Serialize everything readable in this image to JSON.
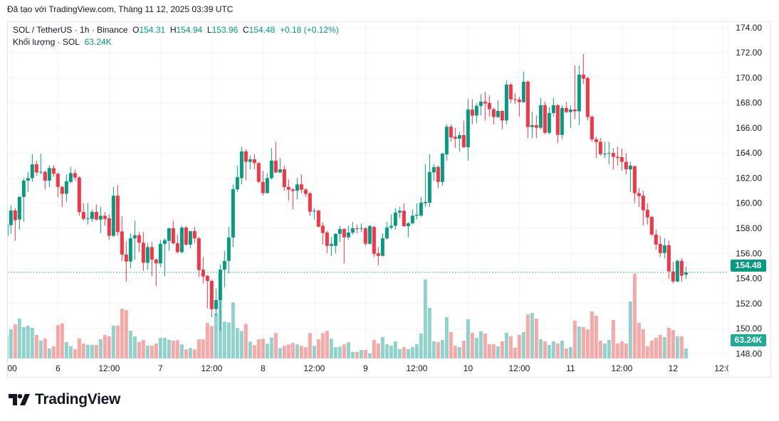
{
  "caption": "Đã tạo với TradingView.com, Tháng 11 12, 2025 03:39 UTC",
  "legend": {
    "symbol": "SOL / TetherUS · 1h · Binance",
    "open_label": "O",
    "open": "154.31",
    "high_label": "H",
    "high": "154.94",
    "low_label": "L",
    "low": "153.96",
    "close_label": "C",
    "close": "154.48",
    "change": "+0.18 (+0.12%)",
    "volume_label": "Khối lượng · SOL",
    "volume": "63.24K"
  },
  "badges": {
    "last_price": "154.48",
    "last_volume": "63.24K"
  },
  "footer": {
    "brand": "TradingView",
    "logo_icon": "tradingview-logo"
  },
  "colors": {
    "up": "#089981",
    "down": "#f23645",
    "up_volume": "#26a69a",
    "down_volume": "#ef5350",
    "grid": "#f0f3fa"
  },
  "chart_data": {
    "type": "candlestick",
    "symbol": "SOL / TetherUS",
    "interval": "1h",
    "ylim": [
      147.62,
      174.45
    ],
    "yticks": [
      "174.00",
      "172.00",
      "170.00",
      "168.00",
      "166.00",
      "164.00",
      "162.00",
      "160.00",
      "158.00",
      "156.00",
      "154.00",
      "152.00",
      "150.00",
      "148.00"
    ],
    "xticks": [
      "00",
      "6",
      "12:00",
      "7",
      "12:00",
      "8",
      "12:00",
      "9",
      "12:00",
      "10",
      "12:00",
      "11",
      "12:00",
      "12",
      "12:0"
    ],
    "last_price": 154.48,
    "ohlc": [
      [
        157.4,
        158.5,
        157.0,
        158.3
      ],
      [
        158.25,
        159.86,
        157.57,
        159.42
      ],
      [
        159.42,
        159.6,
        157.0,
        158.64
      ],
      [
        158.7,
        160.55,
        157.9,
        160.5
      ],
      [
        160.5,
        162.0,
        158.5,
        161.8
      ],
      [
        161.8,
        162.5,
        160.9,
        162.0
      ],
      [
        162.0,
        163.9,
        161.7,
        163.1
      ],
      [
        163.1,
        163.4,
        162.2,
        162.45
      ],
      [
        162.45,
        163.95,
        162.3,
        162.5
      ],
      [
        162.5,
        162.6,
        161.1,
        161.8
      ],
      [
        161.8,
        163.0,
        161.3,
        162.8
      ],
      [
        162.8,
        163.05,
        162.1,
        162.35
      ],
      [
        162.35,
        162.45,
        160.5,
        161.3
      ],
      [
        161.3,
        161.4,
        159.7,
        160.75
      ],
      [
        160.75,
        162.3,
        160.1,
        161.75
      ],
      [
        161.7,
        162.9,
        161.6,
        162.4
      ],
      [
        162.4,
        162.7,
        161.8,
        162.05
      ],
      [
        162.05,
        162.15,
        159.0,
        159.3
      ],
      [
        159.3,
        160.0,
        158.6,
        158.75
      ],
      [
        158.75,
        160.0,
        158.3,
        158.8
      ],
      [
        158.75,
        159.5,
        158.5,
        159.3
      ],
      [
        159.3,
        159.9,
        158.6,
        158.7
      ],
      [
        158.7,
        159.7,
        157.6,
        159.0
      ],
      [
        159.0,
        159.3,
        158.2,
        158.75
      ],
      [
        158.8,
        159.1,
        157.1,
        157.4
      ],
      [
        157.4,
        161.3,
        157.3,
        160.6
      ],
      [
        160.6,
        161.45,
        157.4,
        157.7
      ],
      [
        157.75,
        158.95,
        155.4,
        155.9
      ],
      [
        155.9,
        156.95,
        153.75,
        155.35
      ],
      [
        155.35,
        157.6,
        154.8,
        157.2
      ],
      [
        157.2,
        158.6,
        155.5,
        157.45
      ],
      [
        157.45,
        157.7,
        156.1,
        156.85
      ],
      [
        156.85,
        157.7,
        154.6,
        155.25
      ],
      [
        155.25,
        156.85,
        154.7,
        156.5
      ],
      [
        156.5,
        156.9,
        154.2,
        155.5
      ],
      [
        155.5,
        155.6,
        153.4,
        155.2
      ],
      [
        155.2,
        157.05,
        154.9,
        156.75
      ],
      [
        156.75,
        157.2,
        154.2,
        157.05
      ],
      [
        157.0,
        158.05,
        156.2,
        158.0
      ],
      [
        158.0,
        158.6,
        156.7,
        156.8
      ],
      [
        156.8,
        157.5,
        156.0,
        156.1
      ],
      [
        156.1,
        158.2,
        156.0,
        158.06
      ],
      [
        158.06,
        158.2,
        156.6,
        156.7
      ],
      [
        156.7,
        157.8,
        156.4,
        157.77
      ],
      [
        157.77,
        158.1,
        156.8,
        157.2
      ],
      [
        157.2,
        157.3,
        154.1,
        154.67
      ],
      [
        154.7,
        155.7,
        153.6,
        154.16
      ],
      [
        154.2,
        154.3,
        151.6,
        153.8
      ],
      [
        153.8,
        153.9,
        150.9,
        151.55
      ],
      [
        151.55,
        153.2,
        151.0,
        152.27
      ],
      [
        152.27,
        155.1,
        149.8,
        154.7
      ],
      [
        154.7,
        156.2,
        153.3,
        155.39
      ],
      [
        155.4,
        158.1,
        154.4,
        157.26
      ],
      [
        157.26,
        161.5,
        156.5,
        161.12
      ],
      [
        161.1,
        163.0,
        160.9,
        162.08
      ],
      [
        162.0,
        164.5,
        161.5,
        164.13
      ],
      [
        164.13,
        164.3,
        161.8,
        163.3
      ],
      [
        163.3,
        163.8,
        162.7,
        163.5
      ],
      [
        163.5,
        163.9,
        162.7,
        163.2
      ],
      [
        163.2,
        163.3,
        161.6,
        161.7
      ],
      [
        161.7,
        162.6,
        160.6,
        160.8
      ],
      [
        160.8,
        162.4,
        160.8,
        162.0
      ],
      [
        162.0,
        164.4,
        161.9,
        163.4
      ],
      [
        163.4,
        164.9,
        162.4,
        162.45
      ],
      [
        162.45,
        163.6,
        162.4,
        162.7
      ],
      [
        162.7,
        163.0,
        160.99,
        161.3
      ],
      [
        161.3,
        161.9,
        160.2,
        161.08
      ],
      [
        161.1,
        161.2,
        159.5,
        160.97
      ],
      [
        161.0,
        162.0,
        160.3,
        161.5
      ],
      [
        161.5,
        162.3,
        160.8,
        161.08
      ],
      [
        161.1,
        161.2,
        160.5,
        160.74
      ],
      [
        160.8,
        160.9,
        159.0,
        159.32
      ],
      [
        159.35,
        159.6,
        158.7,
        159.4
      ],
      [
        159.4,
        159.5,
        158.1,
        158.13
      ],
      [
        158.2,
        158.5,
        156.7,
        157.62
      ],
      [
        157.66,
        157.8,
        156.0,
        156.6
      ],
      [
        156.6,
        157.3,
        155.8,
        156.75
      ],
      [
        156.6,
        157.6,
        156.0,
        157.55
      ],
      [
        157.55,
        158.2,
        156.9,
        157.94
      ],
      [
        157.94,
        158.0,
        155.2,
        157.28
      ],
      [
        157.28,
        158.2,
        157.1,
        157.66
      ],
      [
        157.66,
        158.5,
        157.5,
        158.0
      ],
      [
        158.0,
        158.3,
        157.6,
        157.95
      ],
      [
        157.98,
        158.4,
        157.7,
        158.02
      ],
      [
        158.0,
        158.1,
        156.6,
        156.77
      ],
      [
        156.77,
        158.27,
        156.7,
        158.17
      ],
      [
        158.1,
        158.2,
        155.7,
        155.97
      ],
      [
        156.0,
        156.5,
        155.05,
        155.8
      ],
      [
        155.8,
        157.6,
        155.75,
        157.2
      ],
      [
        157.2,
        158.5,
        157.1,
        158.06
      ],
      [
        158.06,
        159.1,
        157.9,
        158.2
      ],
      [
        158.2,
        159.6,
        157.9,
        159.25
      ],
      [
        159.25,
        159.7,
        158.8,
        159.4
      ],
      [
        159.4,
        160.0,
        158.1,
        158.17
      ],
      [
        158.17,
        158.5,
        157.3,
        158.4
      ],
      [
        158.4,
        159.5,
        158.3,
        159.0
      ],
      [
        159.0,
        160.0,
        158.7,
        159.08
      ],
      [
        159.02,
        160.5,
        158.9,
        160.04
      ],
      [
        160.0,
        163.1,
        159.7,
        160.1
      ],
      [
        160.04,
        163.9,
        159.7,
        162.48
      ],
      [
        162.45,
        163.1,
        161.8,
        162.88
      ],
      [
        162.9,
        163.0,
        161.2,
        161.7
      ],
      [
        161.7,
        164.0,
        161.4,
        163.96
      ],
      [
        163.9,
        166.3,
        163.4,
        166.1
      ],
      [
        166.1,
        166.3,
        164.9,
        165.26
      ],
      [
        165.3,
        166.0,
        164.4,
        165.15
      ],
      [
        165.15,
        165.7,
        164.1,
        165.43
      ],
      [
        165.43,
        166.6,
        164.4,
        164.47
      ],
      [
        164.47,
        168.3,
        163.4,
        167.47
      ],
      [
        167.47,
        168.3,
        166.3,
        166.98
      ],
      [
        167.0,
        168.0,
        166.4,
        167.76
      ],
      [
        167.76,
        168.7,
        167.0,
        168.1
      ],
      [
        168.1,
        168.9,
        166.6,
        167.95
      ],
      [
        168.0,
        168.6,
        166.9,
        167.5
      ],
      [
        167.5,
        167.6,
        166.3,
        166.87
      ],
      [
        166.87,
        168.2,
        166.8,
        167.36
      ],
      [
        167.36,
        167.4,
        165.9,
        166.6
      ],
      [
        166.6,
        169.8,
        166.3,
        169.46
      ],
      [
        169.46,
        169.6,
        168.0,
        168.29
      ],
      [
        168.3,
        168.8,
        167.9,
        168.25
      ],
      [
        168.27,
        168.5,
        166.9,
        168.06
      ],
      [
        168.06,
        170.5,
        168.0,
        169.69
      ],
      [
        169.69,
        169.8,
        165.2,
        166.08
      ],
      [
        166.08,
        167.3,
        165.2,
        166.23
      ],
      [
        166.23,
        167.0,
        165.2,
        166.02
      ],
      [
        166.02,
        168.4,
        165.9,
        167.82
      ],
      [
        167.82,
        168.1,
        165.5,
        165.62
      ],
      [
        165.62,
        167.65,
        165.5,
        167.19
      ],
      [
        167.19,
        168.4,
        166.9,
        167.82
      ],
      [
        167.82,
        167.9,
        164.8,
        165.45
      ],
      [
        165.45,
        167.8,
        165.1,
        167.6
      ],
      [
        167.6,
        168.1,
        167.2,
        167.27
      ],
      [
        167.27,
        167.8,
        166.0,
        167.48
      ],
      [
        167.48,
        171.0,
        166.7,
        167.33
      ],
      [
        167.33,
        171.0,
        166.2,
        170.26
      ],
      [
        170.26,
        171.9,
        169.5,
        169.93
      ],
      [
        169.97,
        170.1,
        166.6,
        166.87
      ],
      [
        166.9,
        167.0,
        164.9,
        165.1
      ],
      [
        165.1,
        165.3,
        163.6,
        164.88
      ],
      [
        164.9,
        165.2,
        163.8,
        163.92
      ],
      [
        163.92,
        164.9,
        163.6,
        163.96
      ],
      [
        163.96,
        164.9,
        163.1,
        164.0
      ],
      [
        164.0,
        164.4,
        162.7,
        163.7
      ],
      [
        163.7,
        164.5,
        163.0,
        163.62
      ],
      [
        163.67,
        164.35,
        162.6,
        163.3
      ],
      [
        163.3,
        164.0,
        162.3,
        162.7
      ],
      [
        162.7,
        163.3,
        160.9,
        163.0
      ],
      [
        162.95,
        163.0,
        160.0,
        160.8
      ],
      [
        160.8,
        161.2,
        159.7,
        160.57
      ],
      [
        160.6,
        161.0,
        158.2,
        159.44
      ],
      [
        159.47,
        160.0,
        158.3,
        158.87
      ],
      [
        158.9,
        159.0,
        157.4,
        157.5
      ],
      [
        157.5,
        157.9,
        156.3,
        156.71
      ],
      [
        156.75,
        157.4,
        155.7,
        156.03
      ],
      [
        156.03,
        157.2,
        155.6,
        156.64
      ],
      [
        156.64,
        157.0,
        154.0,
        154.56
      ],
      [
        154.56,
        155.3,
        153.6,
        153.76
      ],
      [
        153.76,
        155.5,
        153.7,
        155.4
      ],
      [
        155.4,
        155.6,
        153.74,
        154.22
      ],
      [
        154.31,
        154.94,
        153.96,
        154.48
      ]
    ],
    "volume_k": [
      146,
      185,
      217,
      253,
      199,
      208,
      194,
      149,
      113,
      127,
      63,
      77,
      212,
      222,
      104,
      77,
      59,
      127,
      95,
      86,
      86,
      86,
      122,
      149,
      140,
      208,
      208,
      316,
      307,
      176,
      140,
      104,
      118,
      81,
      81,
      95,
      131,
      131,
      118,
      113,
      116,
      89,
      57,
      66,
      57,
      121,
      121,
      225,
      206,
      288,
      369,
      234,
      229,
      356,
      193,
      175,
      220,
      107,
      84,
      121,
      125,
      93,
      134,
      161,
      66,
      80,
      89,
      98,
      89,
      80,
      71,
      161,
      80,
      121,
      161,
      175,
      125,
      71,
      75,
      89,
      102,
      41,
      41,
      54,
      54,
      32,
      118,
      95,
      136,
      90,
      81,
      109,
      59,
      72,
      59,
      72,
      90,
      158,
      502,
      321,
      109,
      104,
      118,
      262,
      167,
      81,
      72,
      113,
      249,
      163,
      131,
      172,
      158,
      90,
      90,
      77,
      109,
      163,
      140,
      68,
      149,
      167,
      280,
      289,
      253,
      122,
      109,
      86,
      109,
      95,
      113,
      63,
      72,
      240,
      203,
      199,
      185,
      298,
      271,
      113,
      95,
      118,
      244,
      95,
      109,
      95,
      362,
      538,
      226,
      185,
      77,
      113,
      131,
      149,
      136,
      194,
      181,
      140,
      140,
      63.24
    ]
  }
}
